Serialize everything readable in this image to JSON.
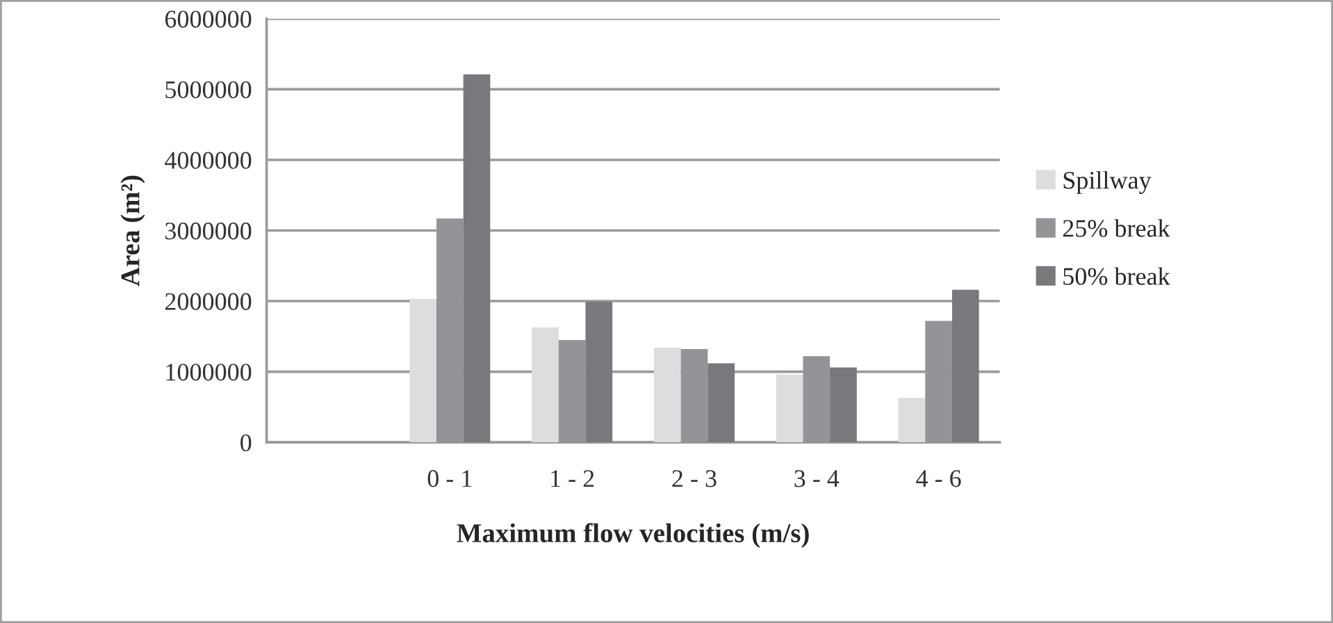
{
  "chart_data": {
    "type": "bar",
    "xlabel": "Maximum flow velocities (m/s)",
    "ylabel": "Area (m²)",
    "categories": [
      null,
      "0 - 1",
      "1 - 2",
      "2 - 3",
      "3 - 4",
      "4 - 6"
    ],
    "series": [
      {
        "name": "Spillway",
        "color": "#dcdddf",
        "values": [
          null,
          2030000,
          1630000,
          1340000,
          960000,
          630000
        ]
      },
      {
        "name": "25% break",
        "color": "#939497",
        "values": [
          null,
          3170000,
          1450000,
          1320000,
          1220000,
          1720000
        ]
      },
      {
        "name": "50% break",
        "color": "#78797c",
        "values": [
          null,
          5210000,
          1990000,
          1120000,
          1060000,
          2160000
        ]
      }
    ],
    "ylim": [
      0,
      6000000
    ],
    "yticks": [
      0,
      1000000,
      2000000,
      3000000,
      4000000,
      5000000,
      6000000
    ],
    "grid": "y",
    "legend": "right"
  }
}
